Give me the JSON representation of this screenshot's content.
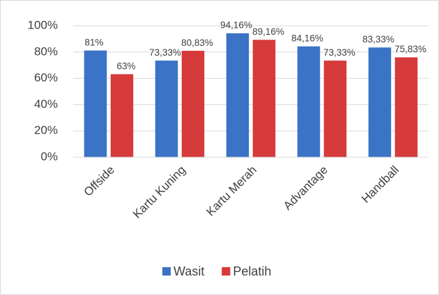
{
  "chart_data": {
    "type": "bar",
    "categories": [
      "Offside",
      "Kartu Kuning",
      "Kartu Merah",
      "Advantage",
      "Handball"
    ],
    "series": [
      {
        "name": "Wasit",
        "color": "#3b73c6",
        "values": [
          81,
          73.33,
          94.16,
          84.16,
          83.33
        ],
        "value_labels": [
          "81%",
          "73,33%",
          "94,16%",
          "84,16%",
          "83,33%"
        ]
      },
      {
        "name": "Pelatih",
        "color": "#d63a3a",
        "values": [
          63,
          80.83,
          89.16,
          73.33,
          75.83
        ],
        "value_labels": [
          "63%",
          "80,83%",
          "89,16%",
          "73,33%",
          "75,83%"
        ]
      }
    ],
    "ylim": [
      0,
      100
    ],
    "yticks": [
      {
        "value": 0,
        "label": "0%"
      },
      {
        "value": 20,
        "label": "20%"
      },
      {
        "value": 40,
        "label": "40%"
      },
      {
        "value": 60,
        "label": "60%"
      },
      {
        "value": 80,
        "label": "80%"
      },
      {
        "value": 100,
        "label": "100%"
      }
    ],
    "grid": true,
    "legend": "bottom"
  }
}
